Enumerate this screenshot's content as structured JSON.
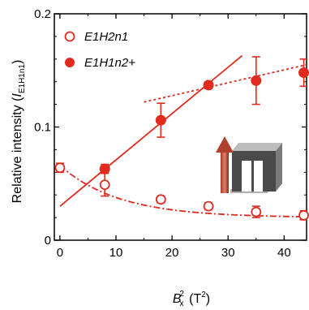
{
  "chart_data": {
    "type": "scatter",
    "xlim": [
      -1,
      44
    ],
    "ylim": [
      0,
      0.2
    ],
    "xticks": [
      0,
      10,
      20,
      30,
      40
    ],
    "yticks": [
      0,
      0.1,
      0.2
    ],
    "xtick_labels": [
      "0",
      "10",
      "20",
      "30",
      "40"
    ],
    "ytick_labels": [
      "0",
      "0.1",
      "0.2"
    ],
    "xlabel": {
      "base": "B",
      "sub": "x",
      "sup": "2",
      "unit": "(T",
      "unit_sup": "2",
      "unit_close": ")"
    },
    "ylabel": {
      "text": "Relative intensity (",
      "italic": "I",
      "sub": "E1H1n1",
      "close": ")"
    },
    "grid": false,
    "legend_position": "top-left",
    "color": "#e02b1e",
    "series": [
      {
        "name": "E1H2n1",
        "marker": "open-circle",
        "x": [
          0,
          8,
          18,
          26.5,
          35,
          43.5
        ],
        "y": [
          0.064,
          0.049,
          0.036,
          0.03,
          0.025,
          0.022
        ],
        "yerr": [
          0.004,
          0.01,
          0.003,
          0.003,
          0.005,
          0.004
        ]
      },
      {
        "name": "E1H1n2+",
        "marker": "filled-circle",
        "x": [
          8,
          18,
          26.5,
          35,
          43.5
        ],
        "y": [
          0.063,
          0.106,
          0.137,
          0.141,
          0.148
        ],
        "yerr": [
          0.004,
          0.015,
          0.003,
          0.021,
          0.012
        ]
      }
    ],
    "fit_lines": [
      {
        "style": "solid",
        "x": [
          0,
          32.5
        ],
        "y": [
          0.03,
          0.163
        ]
      },
      {
        "style": "dotted",
        "x": [
          15,
          44
        ],
        "y": [
          0.122,
          0.155
        ]
      },
      {
        "style": "dash-dot",
        "x": [
          0,
          44
        ],
        "y": [
          0.066,
          0.022
        ]
      }
    ],
    "inset_icon": "magnetic-field-device-icon"
  }
}
